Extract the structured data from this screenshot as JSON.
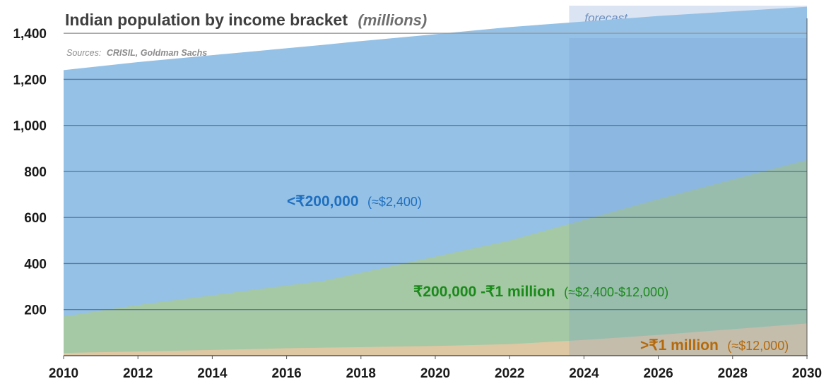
{
  "chart_data": {
    "type": "area",
    "title": "Indian population by income bracket",
    "title_unit": "(millions)",
    "source_prefix": "Sources:",
    "source": "CRISIL, Goldman Sachs",
    "forecast_label": "forecast",
    "forecast_start": 2023.6,
    "x": [
      2010,
      2012,
      2014,
      2016,
      2017,
      2018,
      2020,
      2022,
      2024,
      2026,
      2028,
      2030
    ],
    "x_ticks": [
      2010,
      2012,
      2014,
      2016,
      2018,
      2020,
      2022,
      2024,
      2026,
      2028,
      2030
    ],
    "y_ticks": [
      200,
      400,
      600,
      800,
      1000,
      1200,
      1400
    ],
    "ylim": [
      0,
      1520
    ],
    "xlim": [
      2010,
      2030
    ],
    "grid": true,
    "stacked": false,
    "series": [
      {
        "name": "<₹200,000",
        "note": "(≈$2,400)",
        "color": "#95c1e6",
        "label_color": "#1f6fbf",
        "values": [
          1240,
          1275,
          1305,
          1335,
          1350,
          1366,
          1396,
          1427,
          1451,
          1475,
          1495,
          1515
        ]
      },
      {
        "name": "₹200,000 -₹1 million",
        "note": "(≈$2,400-$12,000)",
        "color": "#a6c9a0",
        "label_color": "#1a8a1a",
        "values": [
          170,
          220,
          262,
          305,
          325,
          360,
          430,
          500,
          590,
          680,
          765,
          850
        ]
      },
      {
        "name": ">₹1 million",
        "note": "(≈$12,000)",
        "color": "#e2c8a3",
        "label_color": "#b46a0c",
        "values": [
          12,
          18,
          25,
          32,
          35,
          37,
          42,
          50,
          68,
          90,
          115,
          140
        ]
      }
    ],
    "colors": {
      "forecast_box": "#dbe4f3",
      "forecast_overlay": "#6f97ce",
      "grid": "#4f6d8f"
    }
  }
}
